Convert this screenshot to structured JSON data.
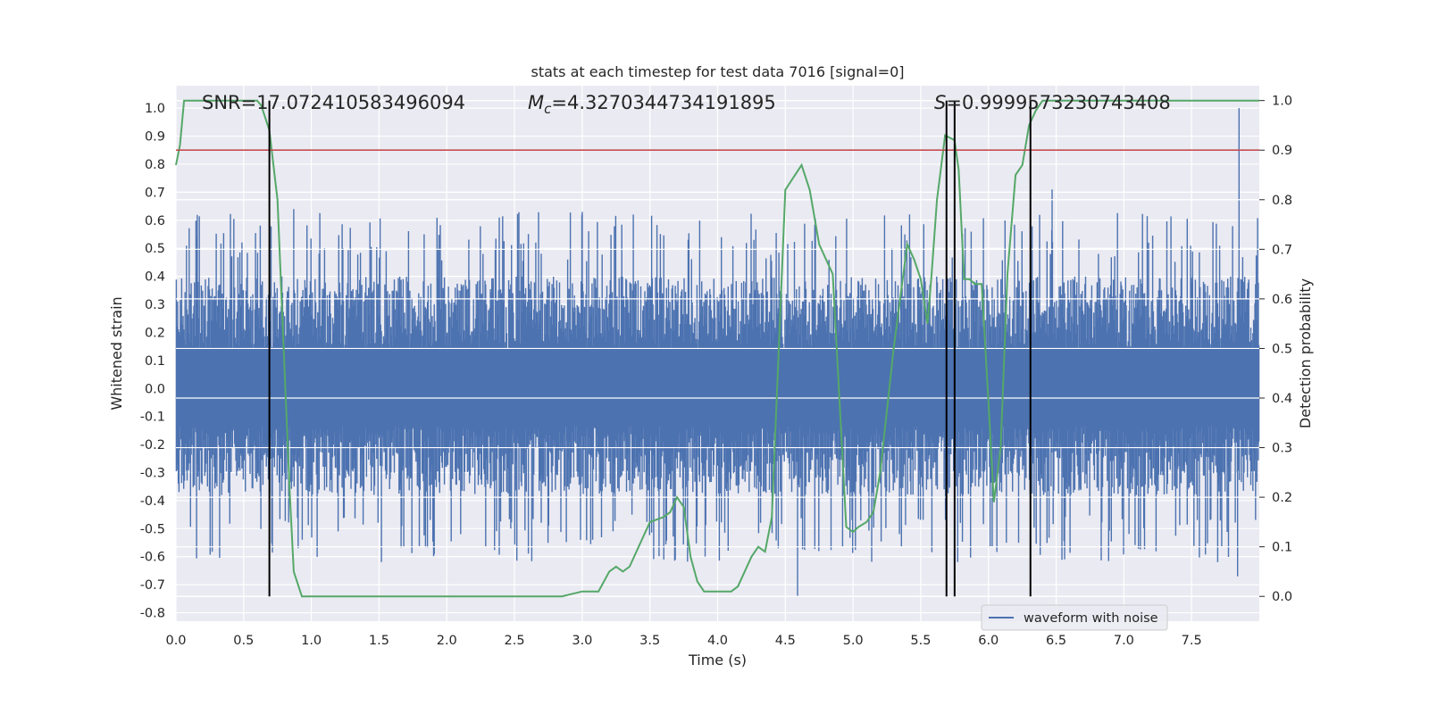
{
  "chart_data": {
    "type": "line",
    "title": "stats at each timestep for test data 7016 [signal=0]",
    "xlabel": "Time (s)",
    "ylabel": "Whitened strain",
    "y2label": "Detection probability",
    "xlim": [
      0,
      8
    ],
    "ylim": [
      -0.83,
      1.08
    ],
    "y2lim": [
      -0.05,
      1.03
    ],
    "xticks": [
      "0.0",
      "0.5",
      "1.0",
      "1.5",
      "2.0",
      "2.5",
      "3.0",
      "3.5",
      "4.0",
      "4.5",
      "5.0",
      "5.5",
      "6.0",
      "6.5",
      "7.0",
      "7.5"
    ],
    "yticks": [
      "1.0",
      "0.9",
      "0.8",
      "0.7",
      "0.6",
      "0.5",
      "0.4",
      "0.3",
      "0.2",
      "0.1",
      "0.0",
      "-0.1",
      "-0.2",
      "-0.3",
      "-0.4",
      "-0.5",
      "-0.6",
      "-0.7",
      "-0.8"
    ],
    "y2ticks": [
      "1.0",
      "0.9",
      "0.8",
      "0.7",
      "0.6",
      "0.5",
      "0.4",
      "0.3",
      "0.2",
      "0.1",
      "0.0"
    ],
    "annotations": {
      "snr": "SNR=17.072410583496094",
      "mc_prefix": "M",
      "mc_sub": "c",
      "mc_value": "=4.3270344734191895",
      "s_prefix": "S",
      "s_value": "=0.9999573230743408"
    },
    "threshold": 0.9,
    "vlines": [
      0.69,
      5.69,
      5.75,
      6.31
    ],
    "legend": {
      "label": "waveform with noise",
      "placement": "lower-right"
    },
    "grid": true,
    "colors": {
      "background": "#eaeaf2",
      "grid": "#ffffff",
      "waveform": "#4c72b0",
      "probability": "#55a868",
      "threshold": "#c44e52",
      "vline": "#000000"
    },
    "waveform": {
      "name": "waveform with noise",
      "num_samples": 1600,
      "typical_envelope": [
        -0.38,
        0.4
      ],
      "peaks": [
        {
          "x": 7.85,
          "y": 1.0
        },
        {
          "x": 4.59,
          "y": -0.74
        },
        {
          "x": 7.84,
          "y": -0.67
        },
        {
          "x": 6.47,
          "y": 0.71
        },
        {
          "x": 0.87,
          "y": 0.64
        },
        {
          "x": 3.0,
          "y": 0.63
        }
      ]
    },
    "probability": {
      "name": "detection probability",
      "x": [
        0.0,
        0.03,
        0.06,
        0.1,
        0.2,
        0.3,
        0.4,
        0.5,
        0.6,
        0.63,
        0.69,
        0.75,
        0.8,
        0.84,
        0.87,
        0.93,
        1.0,
        1.2,
        1.5,
        1.7,
        1.8,
        1.9,
        2.0,
        2.1,
        2.3,
        2.5,
        2.7,
        2.85,
        3.0,
        3.06,
        3.12,
        3.2,
        3.25,
        3.3,
        3.35,
        3.5,
        3.6,
        3.65,
        3.7,
        3.75,
        3.8,
        3.85,
        3.9,
        4.0,
        4.1,
        4.15,
        4.25,
        4.3,
        4.35,
        4.4,
        4.5,
        4.62,
        4.68,
        4.75,
        4.85,
        4.95,
        5.0,
        5.04,
        5.1,
        5.15,
        5.2,
        5.3,
        5.4,
        5.45,
        5.5,
        5.55,
        5.58,
        5.62,
        5.68,
        5.75,
        5.78,
        5.82,
        5.86,
        5.9,
        5.95,
        6.0,
        6.04,
        6.09,
        6.14,
        6.2,
        6.25,
        6.3,
        6.35,
        6.4,
        6.45,
        6.55,
        6.6,
        7.0,
        7.5,
        8.0
      ],
      "y": [
        0.87,
        0.91,
        1.0,
        1.0,
        1.0,
        1.0,
        1.0,
        1.0,
        1.0,
        0.99,
        0.94,
        0.8,
        0.47,
        0.21,
        0.05,
        0.0,
        0.0,
        0.0,
        0.0,
        0.0,
        0.0,
        0.0,
        0.0,
        0.0,
        0.0,
        0.0,
        0.0,
        0.0,
        0.01,
        0.01,
        0.01,
        0.05,
        0.06,
        0.05,
        0.06,
        0.15,
        0.16,
        0.17,
        0.2,
        0.18,
        0.08,
        0.03,
        0.01,
        0.01,
        0.01,
        0.02,
        0.08,
        0.1,
        0.09,
        0.16,
        0.82,
        0.87,
        0.82,
        0.71,
        0.65,
        0.14,
        0.13,
        0.14,
        0.15,
        0.17,
        0.25,
        0.5,
        0.71,
        0.68,
        0.64,
        0.55,
        0.65,
        0.8,
        0.93,
        0.92,
        0.86,
        0.64,
        0.64,
        0.63,
        0.63,
        0.39,
        0.19,
        0.3,
        0.65,
        0.85,
        0.87,
        0.95,
        0.98,
        1.0,
        1.0,
        1.0,
        1.0,
        1.0,
        1.0,
        1.0
      ]
    }
  }
}
